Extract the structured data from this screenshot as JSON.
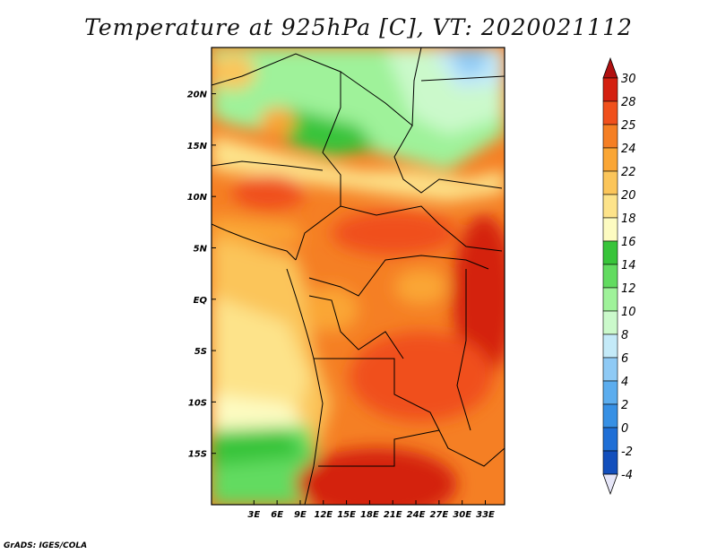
{
  "title": "Temperature at 925hPa [C], VT: 2020021112",
  "credit": "GrADS: IGES/COLA",
  "map": {
    "lon_range": [
      -2.5,
      35.5
    ],
    "lat_range": [
      -20,
      24.5
    ],
    "lat_ticks": [
      {
        "value": 20,
        "label": "20N"
      },
      {
        "value": 15,
        "label": "15N"
      },
      {
        "value": 10,
        "label": "10N"
      },
      {
        "value": 5,
        "label": "5N"
      },
      {
        "value": 0,
        "label": "EQ"
      },
      {
        "value": -5,
        "label": "5S"
      },
      {
        "value": -10,
        "label": "10S"
      },
      {
        "value": -15,
        "label": "15S"
      }
    ],
    "lon_ticks": [
      {
        "value": 3,
        "label": "3E"
      },
      {
        "value": 6,
        "label": "6E"
      },
      {
        "value": 9,
        "label": "9E"
      },
      {
        "value": 12,
        "label": "12E"
      },
      {
        "value": 15,
        "label": "15E"
      },
      {
        "value": 18,
        "label": "18E"
      },
      {
        "value": 21,
        "label": "21E"
      },
      {
        "value": 24,
        "label": "24E"
      },
      {
        "value": 27,
        "label": "27E"
      },
      {
        "value": 30,
        "label": "30E"
      },
      {
        "value": 33,
        "label": "33E"
      }
    ]
  },
  "colorbar": {
    "levels": [
      "30",
      "28",
      "25",
      "24",
      "22",
      "20",
      "18",
      "16",
      "14",
      "12",
      "10",
      "8",
      "6",
      "4",
      "2",
      "0",
      "-2",
      "-4"
    ],
    "colors": [
      "#d42010",
      "#f0501c",
      "#f57f24",
      "#faa635",
      "#fbc55a",
      "#fde38a",
      "#fdfbc1",
      "#38c43a",
      "#62db60",
      "#9ff29a",
      "#cbf9cb",
      "#c4eaf8",
      "#8fcaf5",
      "#5cadee",
      "#3790e4",
      "#1f6fd6",
      "#134fbc",
      "#0d2f8e",
      "#061665"
    ],
    "top_color": "#b01010",
    "bottom_color": "#e6e6f8"
  }
}
